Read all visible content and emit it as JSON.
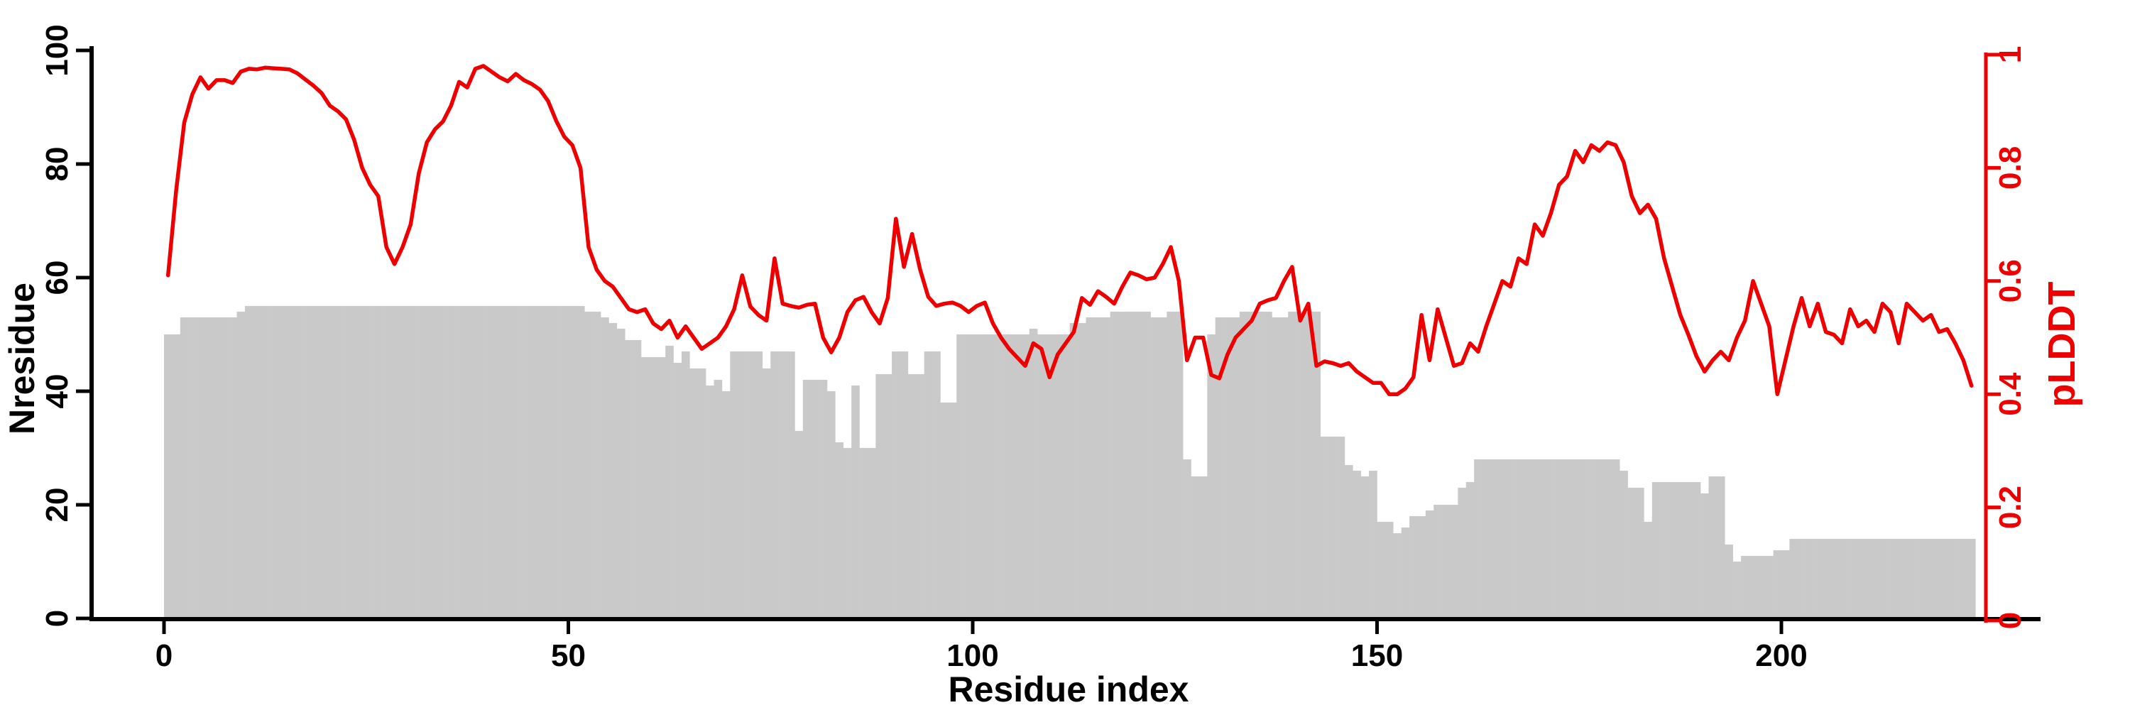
{
  "figure": {
    "background": "#ffffff",
    "bar_color": "#c9c9c9",
    "line_color": "#ee0000",
    "axis_color": "#000000",
    "right_axis_color": "#ee0000"
  },
  "axes": {
    "x": {
      "label": "Residue index",
      "ticks": [
        "0",
        "50",
        "100",
        "150",
        "200"
      ],
      "tick_values": [
        0,
        50,
        100,
        150,
        200
      ]
    },
    "y_left": {
      "label": "Nresidue",
      "ticks": [
        "0",
        "20",
        "40",
        "60",
        "80",
        "100"
      ],
      "tick_values": [
        0,
        20,
        40,
        60,
        80,
        100
      ]
    },
    "y_right": {
      "label": "pLDDT",
      "ticks": [
        "0",
        "0.2",
        "0.4",
        "0.6",
        "0.8",
        "1"
      ],
      "tick_values": [
        0,
        0.2,
        0.4,
        0.6,
        0.8,
        1
      ]
    }
  },
  "chart_data": {
    "type": "bar",
    "title": "",
    "xlabel": "Residue index",
    "ylabel_left": "Nresidue",
    "ylabel_right": "pLDDT",
    "ylim_left": [
      0,
      100
    ],
    "ylim_right": [
      0,
      1
    ],
    "xlim": [
      0,
      224
    ],
    "grid": false,
    "legend": "none",
    "n_points": 224,
    "x_start": 0,
    "x_step": 1,
    "series": [
      {
        "name": "Nresidue",
        "type": "bar",
        "axis": "left",
        "color": "#c9c9c9",
        "values": [
          50,
          50,
          53,
          53,
          53,
          53,
          53,
          53,
          53,
          54,
          55,
          55,
          55,
          55,
          55,
          55,
          55,
          55,
          55,
          55,
          55,
          55,
          55,
          55,
          55,
          55,
          55,
          55,
          55,
          55,
          55,
          55,
          55,
          55,
          55,
          55,
          55,
          55,
          55,
          55,
          55,
          55,
          55,
          55,
          55,
          55,
          55,
          55,
          55,
          55,
          55,
          55,
          54,
          54,
          53,
          52,
          51,
          49,
          49,
          46,
          46,
          46,
          48,
          45,
          47,
          44,
          44,
          41,
          42,
          40,
          47,
          47,
          47,
          47,
          44,
          47,
          47,
          47,
          33,
          42,
          42,
          42,
          40,
          31,
          30,
          41,
          30,
          30,
          43,
          43,
          47,
          47,
          43,
          43,
          47,
          47,
          38,
          38,
          50,
          50,
          50,
          50,
          50,
          50,
          50,
          50,
          50,
          51,
          50,
          50,
          50,
          50,
          52,
          52,
          53,
          53,
          53,
          54,
          54,
          54,
          54,
          54,
          53,
          53,
          54,
          54,
          28,
          25,
          25,
          50,
          53,
          53,
          53,
          54,
          54,
          54,
          54,
          53,
          53,
          54,
          54,
          54,
          54,
          32,
          32,
          32,
          27,
          26,
          25,
          26,
          17,
          17,
          15,
          16,
          18,
          18,
          19,
          20,
          20,
          20,
          23,
          24,
          28,
          28,
          28,
          28,
          28,
          28,
          28,
          28,
          28,
          28,
          28,
          28,
          28,
          28,
          28,
          28,
          28,
          28,
          26,
          23,
          23,
          17,
          24,
          24,
          24,
          24,
          24,
          24,
          22,
          25,
          25,
          13,
          10,
          11,
          11,
          11,
          11,
          12,
          12,
          14,
          14,
          14,
          14,
          14,
          14,
          14,
          14,
          14,
          14,
          14,
          14,
          14,
          14,
          14,
          14,
          14,
          14,
          14,
          14,
          14,
          14,
          14
        ]
      },
      {
        "name": "pLDDT",
        "type": "line",
        "axis": "right",
        "color": "#ee0000",
        "values": [
          0.61,
          0.76,
          0.88,
          0.93,
          0.96,
          0.94,
          0.955,
          0.955,
          0.95,
          0.97,
          0.975,
          0.974,
          0.977,
          0.976,
          0.975,
          0.974,
          0.967,
          0.956,
          0.945,
          0.932,
          0.91,
          0.9,
          0.886,
          0.85,
          0.8,
          0.77,
          0.75,
          0.66,
          0.63,
          0.66,
          0.7,
          0.79,
          0.845,
          0.868,
          0.882,
          0.91,
          0.952,
          0.942,
          0.975,
          0.98,
          0.97,
          0.96,
          0.953,
          0.966,
          0.955,
          0.948,
          0.938,
          0.918,
          0.883,
          0.855,
          0.84,
          0.8,
          0.66,
          0.62,
          0.6,
          0.59,
          0.57,
          0.55,
          0.545,
          0.55,
          0.525,
          0.515,
          0.53,
          0.5,
          0.52,
          0.5,
          0.48,
          0.49,
          0.5,
          0.52,
          0.55,
          0.61,
          0.555,
          0.54,
          0.53,
          0.64,
          0.56,
          0.556,
          0.553,
          0.558,
          0.56,
          0.5,
          0.474,
          0.5,
          0.545,
          0.566,
          0.572,
          0.545,
          0.525,
          0.57,
          0.71,
          0.625,
          0.683,
          0.62,
          0.572,
          0.556,
          0.56,
          0.562,
          0.556,
          0.545,
          0.556,
          0.562,
          0.525,
          0.5,
          0.48,
          0.465,
          0.45,
          0.49,
          0.48,
          0.43,
          0.47,
          0.49,
          0.51,
          0.57,
          0.558,
          0.582,
          0.572,
          0.56,
          0.59,
          0.615,
          0.61,
          0.603,
          0.606,
          0.63,
          0.66,
          0.6,
          0.46,
          0.5,
          0.5,
          0.434,
          0.428,
          0.47,
          0.5,
          0.515,
          0.53,
          0.56,
          0.566,
          0.57,
          0.6,
          0.625,
          0.53,
          0.56,
          0.45,
          0.458,
          0.455,
          0.45,
          0.455,
          0.44,
          0.43,
          0.42,
          0.42,
          0.4,
          0.4,
          0.41,
          0.43,
          0.54,
          0.46,
          0.55,
          0.5,
          0.45,
          0.455,
          0.49,
          0.475,
          0.52,
          0.56,
          0.6,
          0.59,
          0.64,
          0.63,
          0.7,
          0.68,
          0.72,
          0.77,
          0.785,
          0.83,
          0.81,
          0.84,
          0.83,
          0.845,
          0.84,
          0.81,
          0.75,
          0.72,
          0.735,
          0.71,
          0.64,
          0.59,
          0.54,
          0.505,
          0.467,
          0.44,
          0.46,
          0.475,
          0.46,
          0.5,
          0.53,
          0.6,
          0.56,
          0.52,
          0.4,
          0.46,
          0.52,
          0.57,
          0.52,
          0.56,
          0.51,
          0.505,
          0.49,
          0.55,
          0.52,
          0.53,
          0.51,
          0.56,
          0.545,
          0.49,
          0.56,
          0.545,
          0.53,
          0.54,
          0.51,
          0.515,
          0.49,
          0.46,
          0.415
        ]
      }
    ]
  }
}
